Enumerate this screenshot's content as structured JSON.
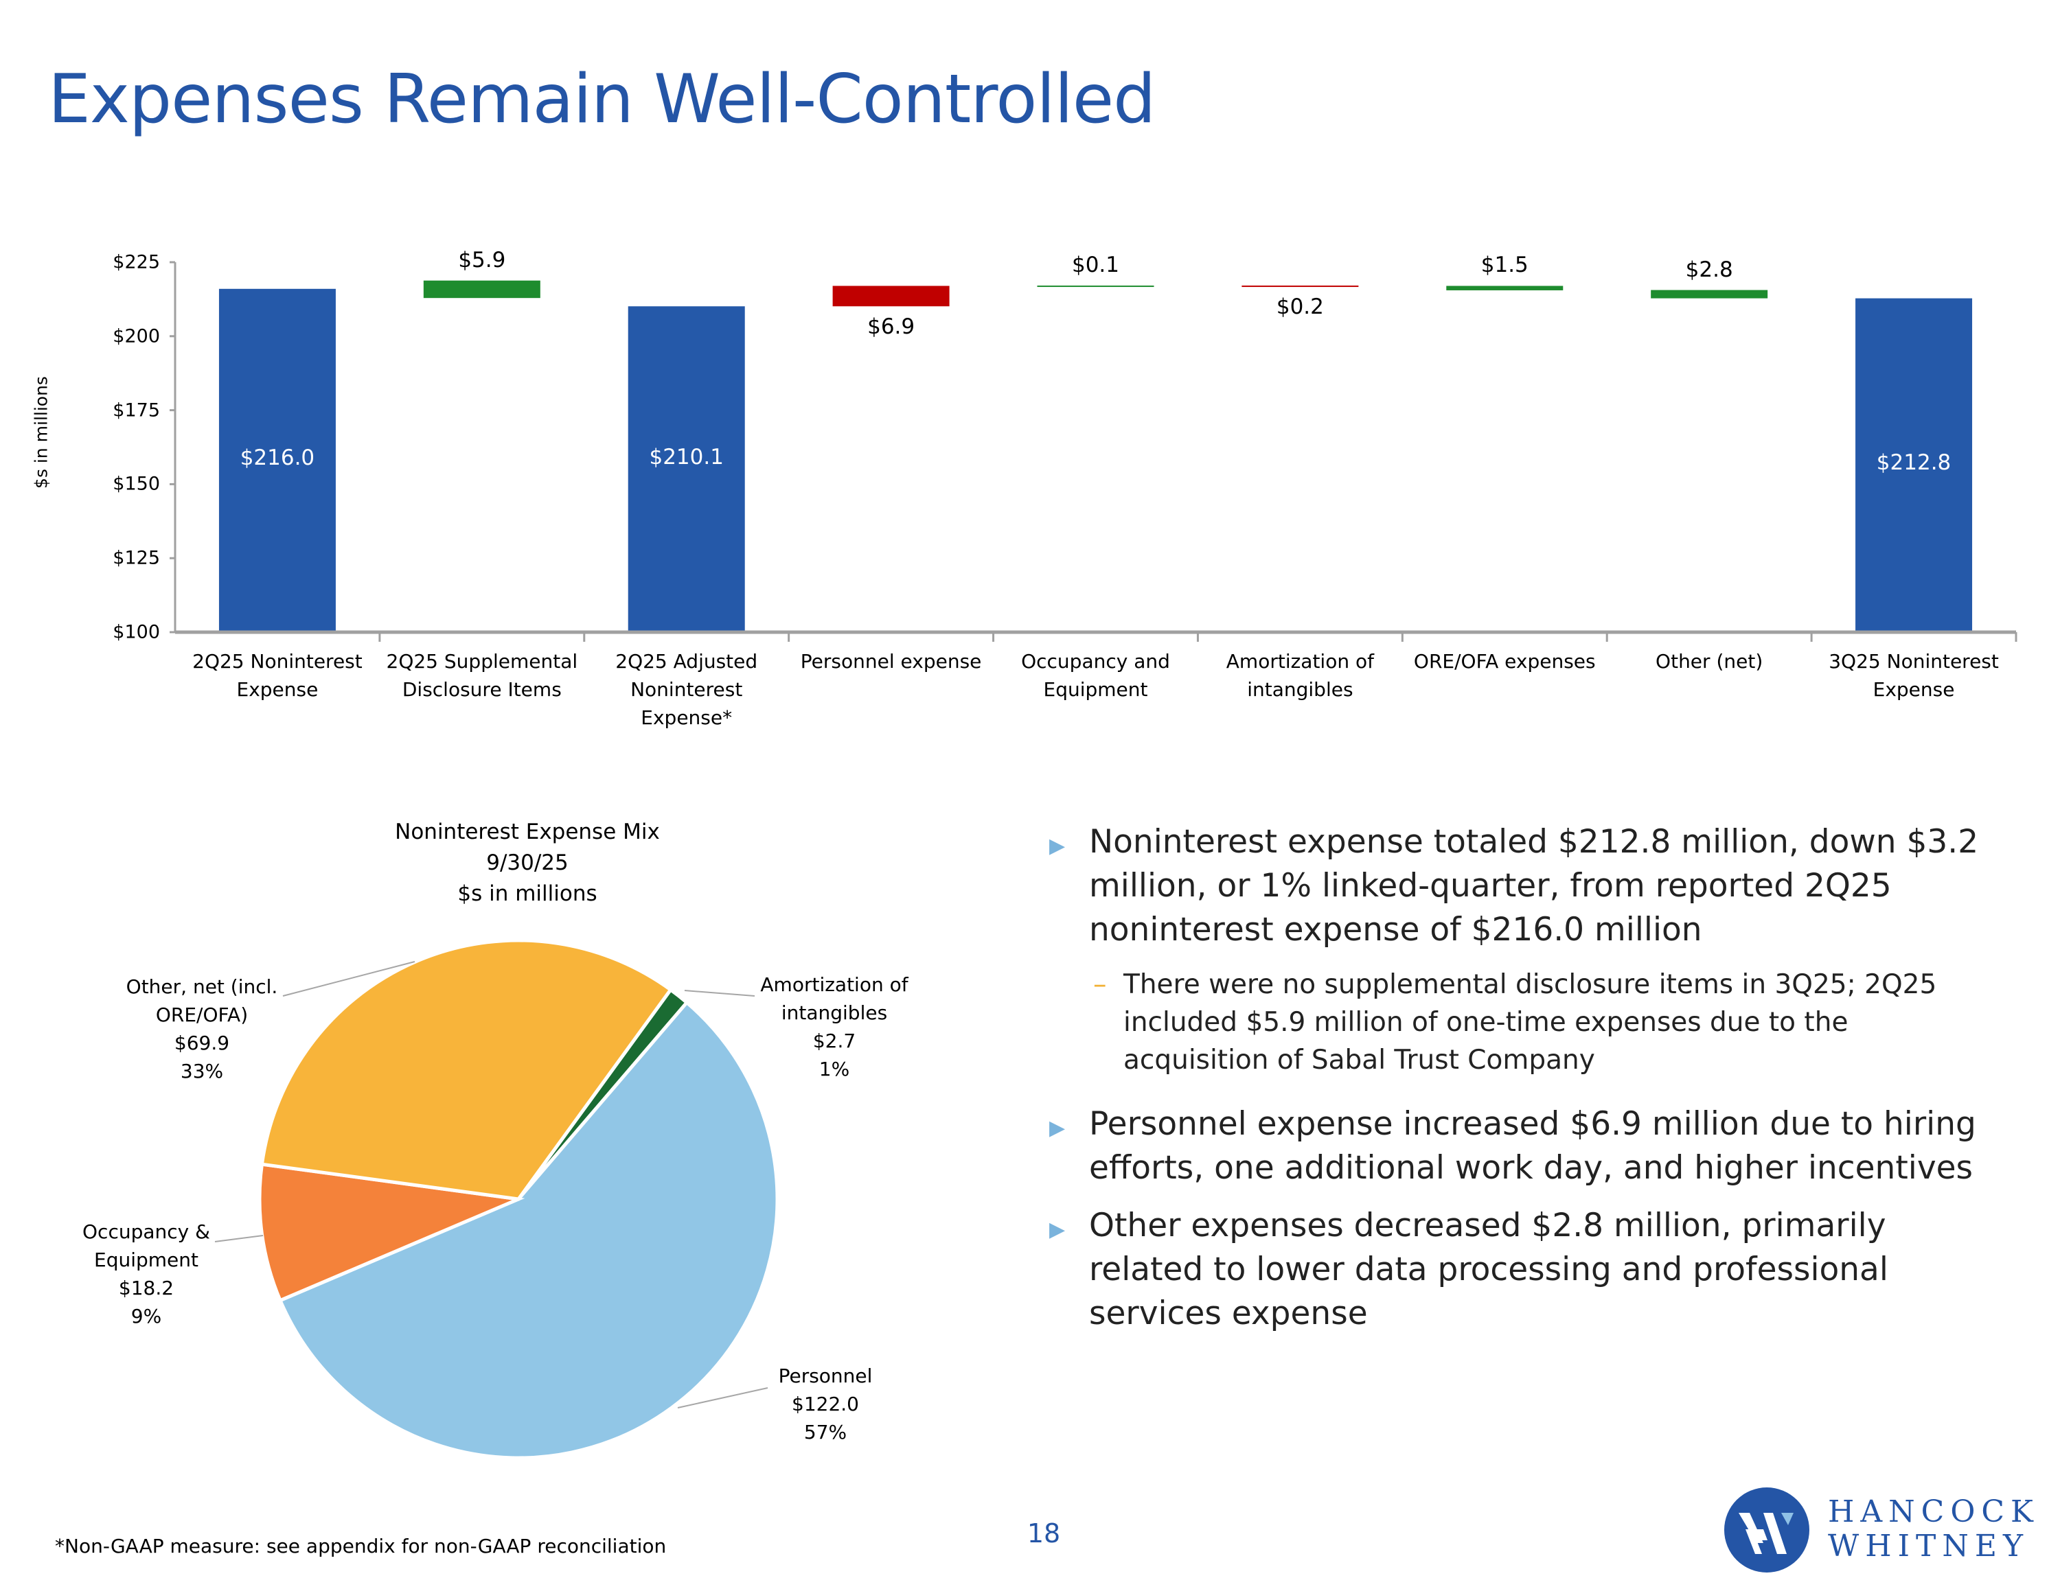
{
  "title": "Expenses Remain Well-Controlled",
  "colors": {
    "title": "#2455a6",
    "total": "#2559a9",
    "increase": "#c00000",
    "decrease": "#1e8c2e",
    "axis": "#a0a0a0"
  },
  "chart_data": [
    {
      "type": "bar",
      "subtype": "waterfall",
      "ylabel": "$s in millions",
      "ylim": [
        100,
        225
      ],
      "yticks": [
        "$225",
        "$200",
        "$175",
        "$150",
        "$125",
        "$100"
      ],
      "ytick_values": [
        225,
        200,
        175,
        150,
        125,
        100
      ],
      "grid": false,
      "categories": [
        "2Q25 Noninterest Expense",
        "2Q25 Supplemental Disclosure Items",
        "2Q25 Adjusted Noninterest Expense*",
        "Personnel expense",
        "Occupancy and Equipment",
        "Amortization of intangibles",
        "ORE/OFA expenses",
        "Other (net)",
        "3Q25 Noninterest Expense"
      ],
      "bars": [
        {
          "kind": "total",
          "low": 100,
          "high": 216.0,
          "label": "$216.0"
        },
        {
          "kind": "decrease",
          "low": 212.9,
          "high": 218.8,
          "label": "$5.9"
        },
        {
          "kind": "total",
          "low": 100,
          "high": 210.1,
          "label": "$210.1"
        },
        {
          "kind": "increase",
          "low": 210.1,
          "high": 217.0,
          "label": "$6.9"
        },
        {
          "kind": "decrease",
          "low": 217.0,
          "high": 217.1,
          "label": "$0.1"
        },
        {
          "kind": "increase",
          "low": 216.9,
          "high": 217.1,
          "label": "$0.2"
        },
        {
          "kind": "decrease",
          "low": 215.5,
          "high": 217.0,
          "label": "$1.5"
        },
        {
          "kind": "decrease",
          "low": 212.8,
          "high": 215.6,
          "label": "$2.8"
        },
        {
          "kind": "total",
          "low": 100,
          "high": 212.8,
          "label": "$212.8"
        }
      ]
    },
    {
      "type": "pie",
      "title": [
        "Noninterest Expense Mix",
        "9/30/25",
        "$s in millions"
      ],
      "slices": [
        {
          "name": "Amortization of intangibles",
          "value": 2.7,
          "pct": "1%",
          "value_label": "$2.7",
          "color": "#1a6b32"
        },
        {
          "name": "Personnel",
          "value": 122.0,
          "pct": "57%",
          "value_label": "$122.0",
          "color": "#91c6e6"
        },
        {
          "name": "Occupancy & Equipment",
          "value": 18.2,
          "pct": "9%",
          "value_label": "$18.2",
          "color": "#f4823a"
        },
        {
          "name": "Other, net (incl. ORE/OFA)",
          "value": 69.9,
          "pct": "33%",
          "value_label": "$69.9",
          "color": "#f8b43a"
        }
      ],
      "labels": {
        "other": [
          "Other, net (incl.",
          "ORE/OFA)",
          "$69.9",
          "33%"
        ],
        "amort": [
          "Amortization of",
          "intangibles",
          "$2.7",
          "1%"
        ],
        "occ": [
          "Occupancy &",
          "Equipment",
          "$18.2",
          "9%"
        ],
        "pers": [
          "Personnel",
          "$122.0",
          "57%"
        ]
      }
    }
  ],
  "bullets": [
    {
      "text": "Noninterest expense totaled $212.8 million, down $3.2 million, or 1% linked-quarter, from reported 2Q25 noninterest expense of $216.0 million",
      "sub": "There were no supplemental disclosure items in 3Q25; 2Q25 included $5.9 million of one-time expenses due to the acquisition of Sabal Trust Company"
    },
    {
      "text": "Personnel expense increased $6.9 million due to hiring efforts, one additional work day, and higher incentives"
    },
    {
      "text": "Other expenses decreased $2.8 million, primarily related to lower data processing and professional services expense"
    }
  ],
  "bullet_marker": "▶",
  "sub_marker": "–",
  "footnote": "*Non-GAAP measure: see appendix for non-GAAP reconciliation",
  "page_number": "18",
  "logo": {
    "line1": "HANCOCK",
    "line2": "WHITNEY"
  }
}
